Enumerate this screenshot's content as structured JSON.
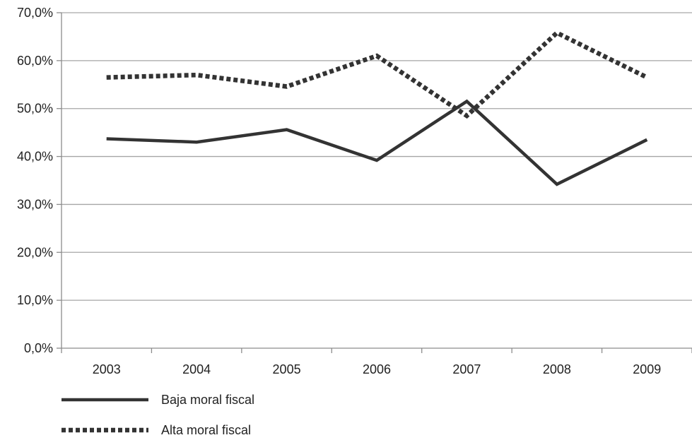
{
  "chart_data": {
    "type": "line",
    "categories": [
      "2003",
      "2004",
      "2005",
      "2006",
      "2007",
      "2008",
      "2009"
    ],
    "series": [
      {
        "name": "Baja moral fiscal",
        "style": "solid",
        "color": "#333333",
        "values": [
          43.7,
          43.0,
          45.6,
          39.2,
          51.5,
          34.2,
          43.5
        ]
      },
      {
        "name": "Alta moral fiscal",
        "style": "dotted",
        "color": "#333333",
        "values": [
          56.5,
          57.0,
          54.6,
          61.0,
          48.5,
          65.8,
          56.5
        ]
      }
    ],
    "y_ticks": [
      "0,0%",
      "10,0%",
      "20,0%",
      "30,0%",
      "40,0%",
      "50,0%",
      "60,0%",
      "70,0%"
    ],
    "ylim": [
      0,
      70
    ],
    "grid": true,
    "gridline_color": "#a6a6a6",
    "legend_position": "bottom-left"
  }
}
